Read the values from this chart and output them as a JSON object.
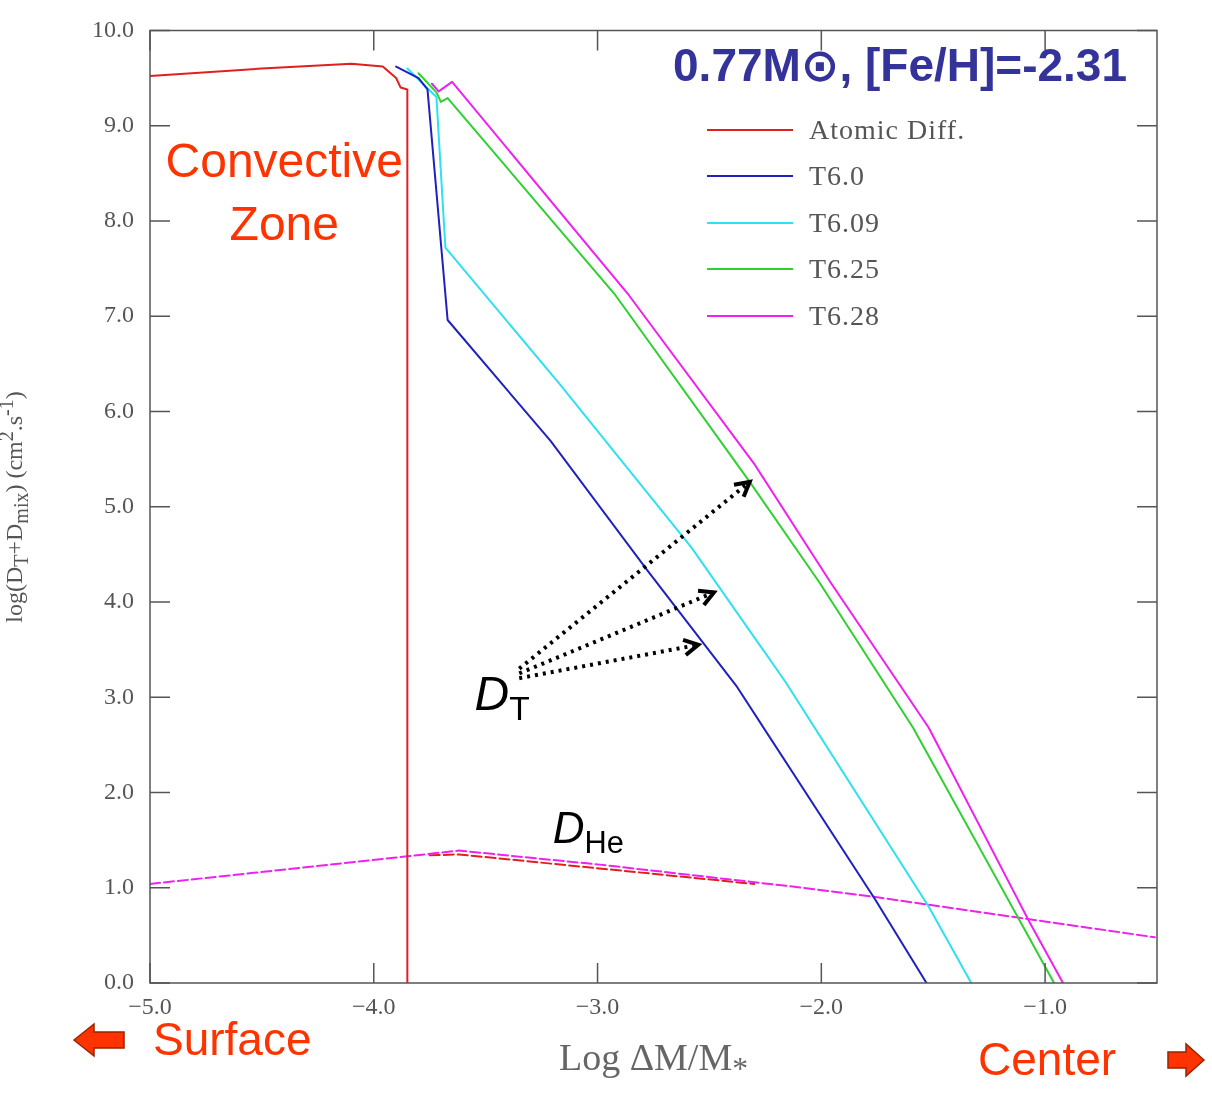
{
  "chart_data": {
    "type": "line",
    "title": "0.77M⊙, [Fe/H]=-2.31",
    "xlabel": "Log ΔM/M$_{*}$",
    "ylabel": "log(D$_{T}$+D$_{mix}$) (cm$^{2}$.s$^{-1}$)",
    "annotations": [
      "Convective Zone",
      {
        "text": "D$_{T}$",
        "x": -2.32,
        "y": 5.26
      },
      "D$_{He}$",
      "Surface",
      "Center"
    ],
    "xlim": [
      -5,
      -0.5
    ],
    "ylim": [
      0,
      10
    ],
    "xticks": [
      {
        "value": -5,
        "label": "−5.0"
      },
      {
        "value": -4,
        "label": "−4.0"
      },
      {
        "value": -3,
        "label": "−3.0"
      },
      {
        "value": -2,
        "label": "−2.0"
      },
      {
        "value": -1,
        "label": "−1.0"
      }
    ],
    "yticks": [
      {
        "value": 0,
        "label": "0.0"
      },
      {
        "value": 1,
        "label": "1.0"
      },
      {
        "value": 2,
        "label": "2.0"
      },
      {
        "value": 3,
        "label": "3.0"
      },
      {
        "value": 4,
        "label": "4.0"
      },
      {
        "value": 5,
        "label": "5.0"
      },
      {
        "value": 6,
        "label": "6.0"
      },
      {
        "value": 7,
        "label": "7.0"
      },
      {
        "value": 8,
        "label": "8.0"
      },
      {
        "value": 9,
        "label": "9.0"
      },
      {
        "value": 10,
        "label": "10.0"
      }
    ],
    "grid": false,
    "legend": "top right",
    "marker": "none",
    "series": [
      {
        "name": "Atomic Diff.",
        "color": "#e02020",
        "line_style": "solid",
        "x": [
          -5,
          -4.5,
          -4.1,
          -3.96,
          -3.9,
          -3.88,
          -3.85,
          -3.85
        ],
        "values": [
          9.52,
          9.6,
          9.65,
          9.62,
          9.5,
          9.4,
          9.38,
          0
        ]
      },
      {
        "name": "T6.0",
        "color": "#2020c0",
        "line_style": "solid",
        "x": [
          -3.9,
          -3.8,
          -3.76,
          -3.67,
          -3.21,
          -2.78,
          -2.38,
          -1.76,
          -1.53
        ],
        "values": [
          9.62,
          9.5,
          9.38,
          6.96,
          5.69,
          4.34,
          3.12,
          0.88,
          0
        ]
      },
      {
        "name": "T6.09",
        "color": "#30e0f0",
        "line_style": "solid",
        "x": [
          -3.85,
          -3.72,
          -3.68,
          -3.17,
          -2.58,
          -2.16,
          -1.52,
          -1.33
        ],
        "values": [
          9.6,
          9.3,
          7.72,
          6.29,
          4.57,
          3.16,
          0.8,
          0
        ]
      },
      {
        "name": "T6.25",
        "color": "#30d030",
        "line_style": "solid",
        "x": [
          -3.8,
          -3.72,
          -3.7,
          -3.67,
          -2.92,
          -2.32,
          -2.01,
          -1.59,
          -1.11,
          -0.96
        ],
        "values": [
          9.55,
          9.35,
          9.25,
          9.29,
          7.22,
          5.26,
          4.21,
          2.68,
          0.64,
          0
        ]
      },
      {
        "name": "T6.28",
        "color": "#f020f0",
        "line_style": "solid",
        "x": [
          -3.74,
          -3.71,
          -3.65,
          -2.86,
          -2.3,
          -1.96,
          -1.52,
          -1.07,
          -0.92
        ],
        "values": [
          9.44,
          9.36,
          9.46,
          7.22,
          5.45,
          4.21,
          2.68,
          0.64,
          0
        ]
      },
      {
        "color": "#f020f0",
        "line_style": "dashed",
        "x": [
          -5,
          -3.85,
          -3.62,
          -2.98,
          -2.12,
          -1.75,
          -0.51
        ],
        "values": [
          1.04,
          1.33,
          1.39,
          1.24,
          1.01,
          0.9,
          0.48
        ]
      },
      {
        "color": "#e02020",
        "line_style": "dashed",
        "x": [
          -3.75,
          -3.62,
          -2.98,
          -2.3
        ],
        "values": [
          1.34,
          1.35,
          1.2,
          1.04
        ]
      }
    ]
  }
}
